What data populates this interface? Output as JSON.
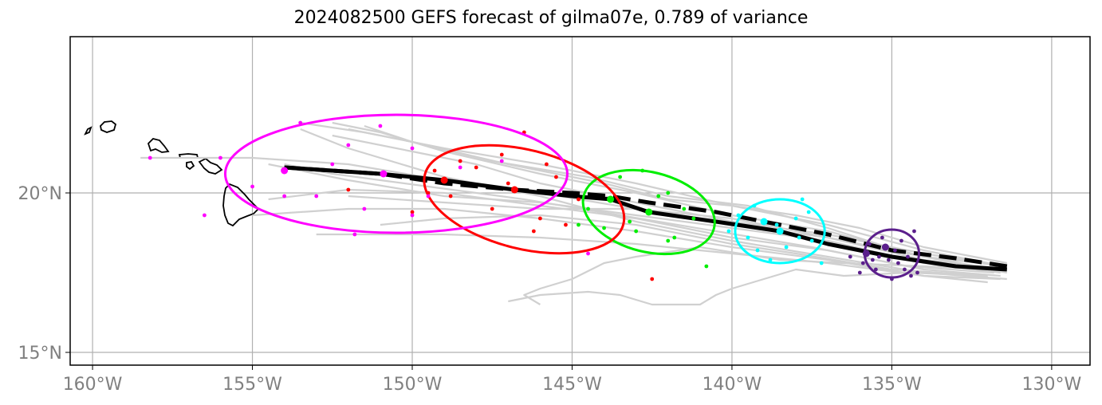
{
  "title": "2024082500 GEFS forecast of gilma07e, 0.789 of variance",
  "axes": {
    "lon_range": [
      -160.7,
      -128.8
    ],
    "lat_range": [
      14.6,
      24.9
    ],
    "x_ticks": [
      {
        "lon": -160,
        "label": "160°W"
      },
      {
        "lon": -155,
        "label": "155°W"
      },
      {
        "lon": -150,
        "label": "150°W"
      },
      {
        "lon": -145,
        "label": "145°W"
      },
      {
        "lon": -140,
        "label": "140°W"
      },
      {
        "lon": -135,
        "label": "135°W"
      },
      {
        "lon": -130,
        "label": "130°W"
      }
    ],
    "y_ticks": [
      {
        "lat": 20,
        "label": "20°N"
      },
      {
        "lat": 15,
        "label": "15°N"
      }
    ],
    "grid": true
  },
  "colors": {
    "ensemble_tracks": "#d0d0d0",
    "mean_track": "#000000",
    "gridlines": "#b0b0b0",
    "coastline": "#000000",
    "groups": [
      "#5b1f8c",
      "#00ffff",
      "#00ee00",
      "#ff0000",
      "#ff00ff"
    ]
  },
  "chart_data": {
    "type": "scatter",
    "mean_track": [
      [
        -131.4,
        17.6
      ],
      [
        -133.0,
        17.7
      ],
      [
        -135.0,
        18.0
      ],
      [
        -137.0,
        18.4
      ],
      [
        -138.5,
        18.8
      ],
      [
        -140.5,
        19.1
      ],
      [
        -142.6,
        19.4
      ],
      [
        -143.8,
        19.8
      ],
      [
        -145.0,
        19.9
      ],
      [
        -146.8,
        20.1
      ],
      [
        -149.0,
        20.4
      ],
      [
        -151.0,
        20.6
      ],
      [
        -154.0,
        20.8
      ]
    ],
    "control_track": [
      [
        -131.4,
        17.7
      ],
      [
        -133.0,
        17.95
      ],
      [
        -135.0,
        18.2
      ],
      [
        -137.0,
        18.7
      ],
      [
        -138.5,
        19.0
      ],
      [
        -140.5,
        19.4
      ],
      [
        -142.6,
        19.7
      ],
      [
        -143.8,
        19.9
      ],
      [
        -145.0,
        20.0
      ],
      [
        -146.8,
        20.1
      ],
      [
        -149.0,
        20.3
      ],
      [
        -151.0,
        20.6
      ],
      [
        -154.0,
        20.8
      ]
    ],
    "ensemble_tracks": [
      [
        [
          -131.4,
          17.5
        ],
        [
          -134.0,
          18.0
        ],
        [
          -137.0,
          18.8
        ],
        [
          -140.0,
          19.3
        ],
        [
          -143.0,
          20.0
        ],
        [
          -146.0,
          20.6
        ],
        [
          -149.0,
          21.3
        ],
        [
          -151.0,
          21.9
        ],
        [
          -152.5,
          22.2
        ]
      ],
      [
        [
          -131.4,
          17.6
        ],
        [
          -134.0,
          17.9
        ],
        [
          -137.0,
          18.6
        ],
        [
          -140.0,
          19.0
        ],
        [
          -143.0,
          19.5
        ],
        [
          -146.0,
          20.0
        ],
        [
          -149.0,
          20.4
        ],
        [
          -152.0,
          20.9
        ],
        [
          -155.0,
          21.1
        ],
        [
          -158.5,
          21.1
        ]
      ],
      [
        [
          -131.6,
          17.4
        ],
        [
          -134.0,
          17.6
        ],
        [
          -137.0,
          18.2
        ],
        [
          -140.0,
          18.6
        ],
        [
          -143.0,
          19.2
        ],
        [
          -146.0,
          19.6
        ],
        [
          -149.0,
          20.0
        ],
        [
          -152.0,
          20.1
        ],
        [
          -154.5,
          19.8
        ]
      ],
      [
        [
          -131.6,
          17.3
        ],
        [
          -134.0,
          17.4
        ],
        [
          -137.0,
          17.9
        ],
        [
          -140.0,
          18.3
        ],
        [
          -143.0,
          18.8
        ],
        [
          -146.0,
          19.2
        ],
        [
          -149.0,
          19.5
        ],
        [
          -152.0,
          19.5
        ],
        [
          -155.0,
          19.3
        ]
      ],
      [
        [
          -132.0,
          17.2
        ],
        [
          -134.0,
          17.4
        ],
        [
          -137.0,
          17.8
        ],
        [
          -140.0,
          18.1
        ],
        [
          -143.0,
          18.4
        ],
        [
          -146.0,
          18.6
        ],
        [
          -149.0,
          18.7
        ],
        [
          -152.0,
          18.7
        ],
        [
          -153.0,
          18.7
        ]
      ],
      [
        [
          -132.0,
          17.4
        ],
        [
          -135.0,
          17.6
        ],
        [
          -138.0,
          18.1
        ],
        [
          -140.0,
          18.4
        ],
        [
          -143.0,
          19.0
        ],
        [
          -146.0,
          19.3
        ],
        [
          -149.0,
          19.2
        ],
        [
          -151.0,
          19.0
        ]
      ],
      [
        [
          -131.5,
          17.7
        ],
        [
          -134.0,
          18.2
        ],
        [
          -137.0,
          19.0
        ],
        [
          -140.0,
          19.6
        ],
        [
          -143.0,
          20.3
        ],
        [
          -146.0,
          20.9
        ],
        [
          -149.0,
          21.4
        ],
        [
          -151.5,
          21.9
        ],
        [
          -153.5,
          22.2
        ]
      ],
      [
        [
          -131.4,
          17.8
        ],
        [
          -134.0,
          18.3
        ],
        [
          -136.0,
          18.9
        ],
        [
          -138.0,
          19.3
        ],
        [
          -140.0,
          19.6
        ],
        [
          -142.0,
          19.8
        ],
        [
          -144.0,
          20.3
        ],
        [
          -147.0,
          20.9
        ],
        [
          -150.0,
          21.6
        ],
        [
          -152.0,
          22.0
        ]
      ],
      [
        [
          -131.5,
          17.6
        ],
        [
          -134.0,
          17.7
        ],
        [
          -136.5,
          17.8
        ],
        [
          -138.5,
          17.9
        ],
        [
          -141.0,
          18.3
        ],
        [
          -143.0,
          18.0
        ],
        [
          -144.0,
          17.8
        ],
        [
          -145.0,
          17.3
        ],
        [
          -146.0,
          17.0
        ],
        [
          -146.5,
          16.8
        ],
        [
          -146.0,
          16.5
        ]
      ],
      [
        [
          -132.0,
          17.4
        ],
        [
          -134.5,
          17.5
        ],
        [
          -136.5,
          17.4
        ],
        [
          -138.0,
          17.6
        ],
        [
          -140.0,
          17.0
        ],
        [
          -140.5,
          16.8
        ],
        [
          -141.0,
          16.5
        ],
        [
          -142.5,
          16.5
        ],
        [
          -143.5,
          16.8
        ],
        [
          -144.5,
          16.9
        ],
        [
          -146.0,
          16.8
        ],
        [
          -147.0,
          16.6
        ]
      ],
      [
        [
          -131.8,
          17.6
        ],
        [
          -134.5,
          18.1
        ],
        [
          -137.0,
          18.9
        ],
        [
          -139.5,
          19.6
        ],
        [
          -142.0,
          19.9
        ],
        [
          -144.5,
          20.5
        ],
        [
          -147.5,
          21.0
        ],
        [
          -150.0,
          21.6
        ],
        [
          -151.5,
          22.1
        ]
      ],
      [
        [
          -131.4,
          17.7
        ],
        [
          -134.0,
          18.0
        ],
        [
          -137.0,
          18.6
        ],
        [
          -140.0,
          19.2
        ],
        [
          -143.0,
          19.5
        ],
        [
          -146.0,
          19.5
        ],
        [
          -149.0,
          19.7
        ],
        [
          -152.0,
          19.9
        ]
      ],
      [
        [
          -131.6,
          17.5
        ],
        [
          -134.0,
          17.8
        ],
        [
          -137.0,
          18.5
        ],
        [
          -140.0,
          18.9
        ],
        [
          -143.0,
          19.3
        ],
        [
          -146.0,
          19.7
        ],
        [
          -149.0,
          19.9
        ],
        [
          -152.0,
          20.4
        ],
        [
          -154.5,
          20.9
        ]
      ],
      [
        [
          -131.4,
          17.3
        ],
        [
          -134.0,
          17.5
        ],
        [
          -137.0,
          18.0
        ],
        [
          -140.0,
          18.5
        ],
        [
          -143.0,
          19.1
        ],
        [
          -146.0,
          19.9
        ],
        [
          -149.0,
          20.5
        ],
        [
          -152.0,
          21.4
        ],
        [
          -153.5,
          22.0
        ]
      ],
      [
        [
          -131.8,
          17.5
        ],
        [
          -134.5,
          17.7
        ],
        [
          -137.5,
          18.3
        ],
        [
          -140.5,
          18.8
        ],
        [
          -143.5,
          19.3
        ],
        [
          -146.5,
          19.8
        ],
        [
          -149.5,
          20.2
        ],
        [
          -152.5,
          20.6
        ],
        [
          -154.0,
          20.9
        ]
      ],
      [
        [
          -131.5,
          17.7
        ],
        [
          -134.0,
          18.1
        ],
        [
          -137.0,
          18.7
        ],
        [
          -140.0,
          19.1
        ],
        [
          -143.0,
          19.7
        ],
        [
          -146.0,
          20.3
        ],
        [
          -148.0,
          20.9
        ],
        [
          -150.0,
          21.3
        ],
        [
          -152.5,
          21.8
        ]
      ]
    ],
    "forecast_groups": [
      {
        "center": [
          -135.0,
          18.1
        ],
        "ellipse": {
          "rx_deg": 0.85,
          "ry_deg": 0.75,
          "angle": 0
        },
        "points": [
          [
            -135.8,
            18.1
          ],
          [
            -135.2,
            18.3
          ],
          [
            -134.8,
            17.8
          ],
          [
            -135.5,
            17.6
          ],
          [
            -134.5,
            18.0
          ],
          [
            -135.9,
            17.8
          ],
          [
            -134.2,
            17.5
          ],
          [
            -135.3,
            18.6
          ],
          [
            -134.7,
            18.5
          ],
          [
            -136.0,
            17.5
          ],
          [
            -135.0,
            17.3
          ],
          [
            -134.3,
            18.8
          ],
          [
            -135.7,
            18.4
          ],
          [
            -135.1,
            17.9
          ],
          [
            -134.9,
            18.2
          ],
          [
            -135.4,
            18.0
          ],
          [
            -134.6,
            17.6
          ],
          [
            -135.6,
            17.9
          ],
          [
            -134.4,
            17.4
          ],
          [
            -136.3,
            18.0
          ]
        ]
      },
      {
        "center": [
          -138.5,
          18.8
        ],
        "ellipse": {
          "rx_deg": 1.4,
          "ry_deg": 1.0,
          "angle": 0
        },
        "points": [
          [
            -139.0,
            19.1
          ],
          [
            -138.5,
            18.8
          ],
          [
            -139.5,
            18.6
          ],
          [
            -138.0,
            19.2
          ],
          [
            -137.5,
            18.5
          ],
          [
            -139.8,
            19.3
          ],
          [
            -137.8,
            19.8
          ],
          [
            -138.8,
            17.9
          ],
          [
            -137.2,
            17.8
          ],
          [
            -140.1,
            18.8
          ],
          [
            -137.6,
            19.4
          ],
          [
            -138.3,
            18.3
          ],
          [
            -139.3,
            19.6
          ],
          [
            -138.6,
            19.0
          ],
          [
            -137.9,
            18.6
          ],
          [
            -139.2,
            18.2
          ]
        ]
      },
      {
        "center": [
          -142.6,
          19.4
        ],
        "ellipse": {
          "rx_deg": 2.1,
          "ry_deg": 1.25,
          "angle": 14
        },
        "points": [
          [
            -143.8,
            19.8
          ],
          [
            -142.6,
            19.4
          ],
          [
            -143.5,
            20.5
          ],
          [
            -142.0,
            20.0
          ],
          [
            -141.8,
            18.6
          ],
          [
            -143.0,
            18.8
          ],
          [
            -144.5,
            19.5
          ],
          [
            -142.8,
            20.7
          ],
          [
            -141.2,
            19.2
          ],
          [
            -144.0,
            18.9
          ],
          [
            -142.3,
            19.9
          ],
          [
            -141.5,
            19.5
          ],
          [
            -143.2,
            19.1
          ],
          [
            -142.0,
            18.5
          ],
          [
            -140.8,
            17.7
          ],
          [
            -144.8,
            19.0
          ]
        ]
      },
      {
        "center": [
          -146.5,
          19.8
        ],
        "ellipse": {
          "rx_deg": 3.2,
          "ry_deg": 1.55,
          "angle": 14
        },
        "points": [
          [
            -149.0,
            20.4
          ],
          [
            -146.8,
            20.1
          ],
          [
            -148.0,
            20.8
          ],
          [
            -145.5,
            20.5
          ],
          [
            -147.5,
            19.5
          ],
          [
            -144.8,
            19.8
          ],
          [
            -146.2,
            18.8
          ],
          [
            -149.5,
            20.0
          ],
          [
            -148.5,
            21.0
          ],
          [
            -147.2,
            21.2
          ],
          [
            -145.8,
            20.9
          ],
          [
            -150.0,
            19.4
          ],
          [
            -148.8,
            19.9
          ],
          [
            -146.0,
            19.2
          ],
          [
            -147.0,
            20.3
          ],
          [
            -145.2,
            19.0
          ],
          [
            -149.3,
            20.7
          ],
          [
            -152.0,
            20.1
          ],
          [
            -146.5,
            21.9
          ],
          [
            -142.5,
            17.3
          ]
        ]
      },
      {
        "center": [
          -150.5,
          20.6
        ],
        "ellipse": {
          "rx_deg": 5.35,
          "ry_deg": 1.85,
          "angle": 0
        },
        "points": [
          [
            -154.0,
            20.7
          ],
          [
            -150.9,
            20.6
          ],
          [
            -152.0,
            21.5
          ],
          [
            -153.5,
            22.2
          ],
          [
            -151.0,
            22.1
          ],
          [
            -150.0,
            21.4
          ],
          [
            -148.5,
            20.8
          ],
          [
            -152.5,
            20.9
          ],
          [
            -155.0,
            20.2
          ],
          [
            -153.0,
            19.9
          ],
          [
            -151.5,
            19.5
          ],
          [
            -149.5,
            19.9
          ],
          [
            -156.0,
            21.1
          ],
          [
            -158.2,
            21.1
          ],
          [
            -156.5,
            19.3
          ],
          [
            -154.0,
            19.9
          ],
          [
            -150.0,
            19.3
          ],
          [
            -151.8,
            18.7
          ],
          [
            -147.2,
            21.0
          ],
          [
            -144.5,
            18.1
          ]
        ]
      }
    ]
  }
}
